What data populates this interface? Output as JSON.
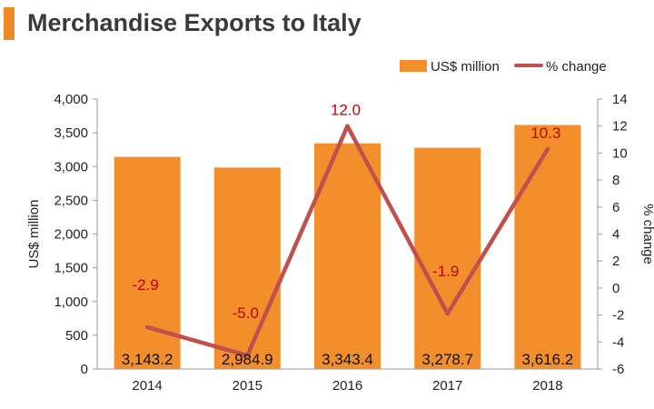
{
  "chart_data": {
    "type": "bar",
    "title": "Merchandise Exports to Italy",
    "categories": [
      "2014",
      "2015",
      "2016",
      "2017",
      "2018"
    ],
    "series": [
      {
        "name": "US$ million",
        "type": "bar",
        "axis": "left",
        "color": "#f28e2b",
        "values": [
          3143.2,
          2984.9,
          3343.4,
          3278.7,
          3616.2
        ],
        "labels": [
          "3,143.2",
          "2,984.9",
          "3,343.4",
          "3,278.7",
          "3,616.2"
        ]
      },
      {
        "name": "% change",
        "type": "line",
        "axis": "right",
        "color": "#c0504d",
        "values": [
          -2.9,
          -5.0,
          12.0,
          -1.9,
          10.3
        ],
        "labels": [
          "-2.9",
          "-5.0",
          "12.0",
          "-1.9",
          "10.3"
        ]
      }
    ],
    "ylabel": "US$ million",
    "y2label": "% change",
    "ylim": [
      0,
      4000
    ],
    "y2lim": [
      -6,
      14
    ],
    "yticks": [
      "0",
      "500",
      "1,000",
      "1,500",
      "2,000",
      "2,500",
      "3,000",
      "3,500",
      "4,000"
    ],
    "y2ticks": [
      "-6",
      "-4",
      "-2",
      "0",
      "2",
      "4",
      "6",
      "8",
      "10",
      "12",
      "14"
    ],
    "legend_position": "top-right",
    "grid": false
  }
}
